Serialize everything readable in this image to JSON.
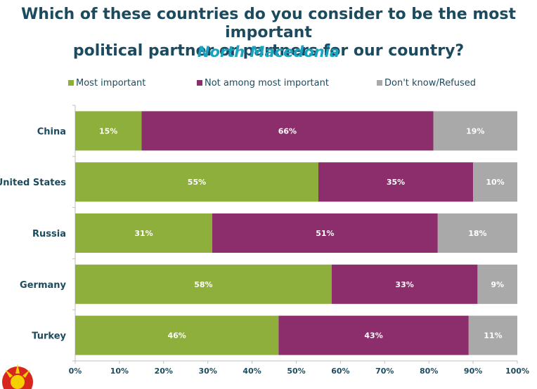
{
  "title": "Which of these countries do you consider to be the most important political partner or partners for our country?",
  "title_line1": "Which of these countries do you consider to be the most important",
  "title_line2": "political partner or partners for our country?",
  "subtitle": "North Macedonia",
  "chart_data": {
    "type": "bar",
    "orientation": "horizontal",
    "stacked": true,
    "categories": [
      "China",
      "United States",
      "Russia",
      "Germany",
      "Turkey"
    ],
    "series": [
      {
        "name": "Most important",
        "color": "#8faf3c",
        "values": [
          15,
          55,
          31,
          58,
          46
        ]
      },
      {
        "name": "Not among most important",
        "color": "#8b2e6b",
        "values": [
          66,
          35,
          51,
          33,
          43
        ]
      },
      {
        "name": "Don't know/Refused",
        "color": "#a9a9a9",
        "values": [
          19,
          10,
          18,
          9,
          11
        ]
      }
    ],
    "xlim": [
      0,
      100
    ],
    "xticks": [
      "0%",
      "10%",
      "20%",
      "30%",
      "40%",
      "50%",
      "60%",
      "70%",
      "80%",
      "90%",
      "100%"
    ],
    "legend_position": "top",
    "grid": false
  }
}
